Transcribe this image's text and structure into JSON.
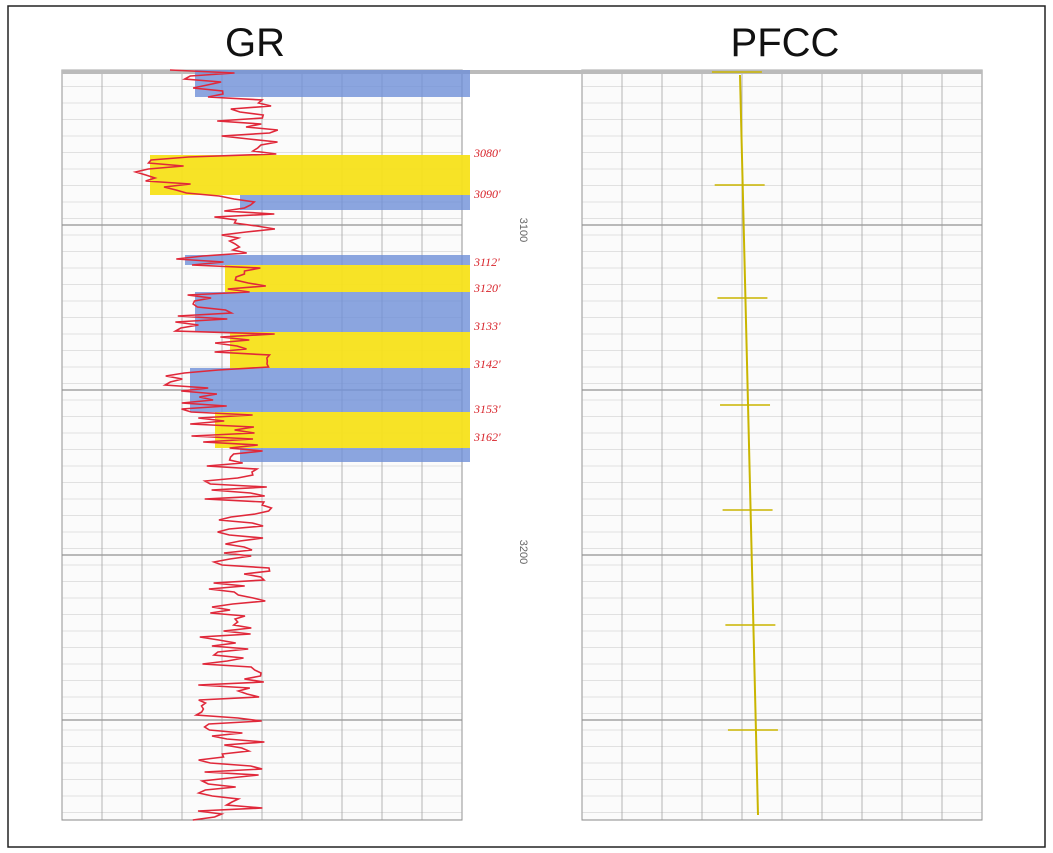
{
  "tracks": [
    {
      "title": "GR"
    },
    {
      "title": "PFCC"
    }
  ],
  "depth_scale": [
    "3100",
    "3200"
  ],
  "zone_labels": [
    "3080'",
    "3090'",
    "3112'",
    "3120'",
    "3133'",
    "3142'",
    "3153'",
    "3162'"
  ]
}
